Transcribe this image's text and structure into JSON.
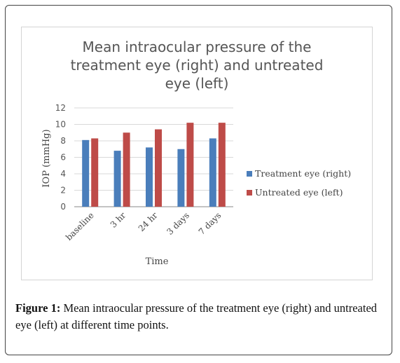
{
  "chart_data": {
    "type": "bar",
    "title_lines": [
      "Mean intraocular pressure of the",
      "treatment eye (right) and untreated",
      "eye (left)"
    ],
    "xlabel": "Time",
    "ylabel": "IOP (mmHg)",
    "categories": [
      "baseline",
      "3 hr",
      "24 hr",
      "3 days",
      "7 days"
    ],
    "ylim": [
      0,
      12
    ],
    "yticks": [
      "0",
      "2",
      "4",
      "6",
      "8",
      "10",
      "12"
    ],
    "grid": true,
    "legend_position": "right",
    "series": [
      {
        "name": "Treatment eye (right)",
        "color": "#4a7ebb",
        "values": [
          8.1,
          6.8,
          7.2,
          7.0,
          8.3
        ]
      },
      {
        "name": "Untreated eye (left)",
        "color": "#be4b48",
        "values": [
          8.3,
          9.0,
          9.4,
          10.2,
          10.2
        ]
      }
    ]
  },
  "caption": {
    "label": "Figure 1:",
    "text": " Mean intraocular pressure of the treatment eye (right) and untreated eye (left) at different time points."
  }
}
